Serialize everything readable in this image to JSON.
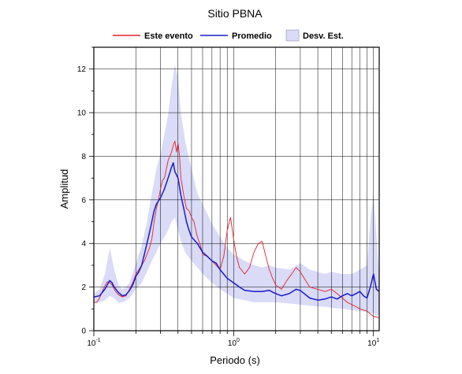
{
  "chart_data": {
    "type": "line",
    "title": "Sitio PBNA",
    "xlabel": "Periodo (s)",
    "ylabel": "Amplitud",
    "x_scale": "log",
    "xlim": [
      0.1,
      11
    ],
    "ylim": [
      0,
      13
    ],
    "grid": true,
    "legend_position": "top-center",
    "x_ticks": [
      {
        "value": 0.1,
        "base": "10",
        "exp": "-1"
      },
      {
        "value": 1,
        "base": "10",
        "exp": "0"
      },
      {
        "value": 10,
        "base": "10",
        "exp": "1"
      }
    ],
    "y_ticks": [
      0,
      2,
      4,
      6,
      8,
      10,
      12
    ],
    "legend": [
      {
        "label": "Este evento",
        "kind": "line",
        "color": "#e8202a"
      },
      {
        "label": "Promedio",
        "kind": "line",
        "color": "#1a1acc"
      },
      {
        "label": "Desv. Est.",
        "kind": "band",
        "color": "#d9dbf7"
      }
    ],
    "series": [
      {
        "name": "Este evento",
        "color": "#e8202a",
        "points": [
          [
            0.1,
            1.3
          ],
          [
            0.105,
            1.3
          ],
          [
            0.11,
            1.5
          ],
          [
            0.115,
            1.8
          ],
          [
            0.12,
            2.05
          ],
          [
            0.125,
            2.25
          ],
          [
            0.13,
            2.2
          ],
          [
            0.135,
            2.1
          ],
          [
            0.14,
            1.9
          ],
          [
            0.145,
            1.75
          ],
          [
            0.15,
            1.65
          ],
          [
            0.16,
            1.55
          ],
          [
            0.17,
            1.6
          ],
          [
            0.18,
            1.9
          ],
          [
            0.19,
            2.2
          ],
          [
            0.2,
            2.6
          ],
          [
            0.21,
            2.8
          ],
          [
            0.22,
            3.0
          ],
          [
            0.23,
            3.2
          ],
          [
            0.24,
            3.5
          ],
          [
            0.25,
            3.8
          ],
          [
            0.26,
            4.2
          ],
          [
            0.27,
            5.0
          ],
          [
            0.28,
            5.6
          ],
          [
            0.29,
            6.0
          ],
          [
            0.3,
            6.5
          ],
          [
            0.31,
            6.9
          ],
          [
            0.32,
            7.0
          ],
          [
            0.33,
            7.4
          ],
          [
            0.34,
            7.8
          ],
          [
            0.35,
            8.0
          ],
          [
            0.36,
            8.2
          ],
          [
            0.37,
            8.5
          ],
          [
            0.38,
            8.7
          ],
          [
            0.39,
            8.2
          ],
          [
            0.4,
            8.6
          ],
          [
            0.41,
            8.0
          ],
          [
            0.42,
            7.0
          ],
          [
            0.44,
            6.2
          ],
          [
            0.46,
            5.6
          ],
          [
            0.48,
            5.5
          ],
          [
            0.5,
            5.2
          ],
          [
            0.52,
            5.0
          ],
          [
            0.55,
            4.3
          ],
          [
            0.58,
            3.9
          ],
          [
            0.6,
            3.5
          ],
          [
            0.65,
            3.4
          ],
          [
            0.7,
            3.2
          ],
          [
            0.75,
            3.0
          ],
          [
            0.8,
            2.8
          ],
          [
            0.85,
            3.4
          ],
          [
            0.9,
            4.6
          ],
          [
            0.95,
            5.2
          ],
          [
            1.0,
            4.2
          ],
          [
            1.05,
            3.4
          ],
          [
            1.1,
            2.9
          ],
          [
            1.2,
            2.6
          ],
          [
            1.3,
            2.9
          ],
          [
            1.4,
            3.6
          ],
          [
            1.5,
            4.0
          ],
          [
            1.6,
            4.1
          ],
          [
            1.7,
            3.4
          ],
          [
            1.8,
            2.8
          ],
          [
            1.9,
            2.4
          ],
          [
            2.0,
            2.1
          ],
          [
            2.2,
            1.9
          ],
          [
            2.4,
            2.3
          ],
          [
            2.6,
            2.6
          ],
          [
            2.8,
            2.9
          ],
          [
            3.0,
            2.7
          ],
          [
            3.2,
            2.4
          ],
          [
            3.5,
            2.0
          ],
          [
            4.0,
            1.9
          ],
          [
            4.5,
            1.8
          ],
          [
            5.0,
            1.9
          ],
          [
            5.5,
            1.7
          ],
          [
            6.0,
            1.5
          ],
          [
            6.5,
            1.3
          ],
          [
            7.0,
            1.2
          ],
          [
            7.5,
            1.1
          ],
          [
            8.0,
            1.0
          ],
          [
            9.0,
            0.9
          ],
          [
            10.0,
            0.65
          ],
          [
            11.0,
            0.6
          ]
        ]
      },
      {
        "name": "Promedio",
        "color": "#1a1acc",
        "points": [
          [
            0.1,
            1.55
          ],
          [
            0.11,
            1.6
          ],
          [
            0.12,
            1.9
          ],
          [
            0.13,
            2.3
          ],
          [
            0.135,
            2.2
          ],
          [
            0.14,
            2.0
          ],
          [
            0.15,
            1.75
          ],
          [
            0.16,
            1.6
          ],
          [
            0.17,
            1.65
          ],
          [
            0.18,
            1.85
          ],
          [
            0.19,
            2.1
          ],
          [
            0.2,
            2.5
          ],
          [
            0.21,
            2.7
          ],
          [
            0.22,
            3.0
          ],
          [
            0.23,
            3.5
          ],
          [
            0.24,
            4.0
          ],
          [
            0.25,
            4.5
          ],
          [
            0.26,
            5.0
          ],
          [
            0.27,
            5.5
          ],
          [
            0.28,
            5.8
          ],
          [
            0.3,
            6.1
          ],
          [
            0.32,
            6.5
          ],
          [
            0.34,
            7.0
          ],
          [
            0.36,
            7.5
          ],
          [
            0.37,
            7.7
          ],
          [
            0.38,
            7.3
          ],
          [
            0.4,
            7.0
          ],
          [
            0.42,
            6.2
          ],
          [
            0.44,
            5.6
          ],
          [
            0.46,
            5.0
          ],
          [
            0.48,
            4.6
          ],
          [
            0.5,
            4.3
          ],
          [
            0.55,
            4.0
          ],
          [
            0.6,
            3.6
          ],
          [
            0.65,
            3.4
          ],
          [
            0.7,
            3.2
          ],
          [
            0.75,
            3.1
          ],
          [
            0.8,
            2.8
          ],
          [
            0.9,
            2.4
          ],
          [
            1.0,
            2.2
          ],
          [
            1.1,
            2.0
          ],
          [
            1.2,
            1.85
          ],
          [
            1.4,
            1.8
          ],
          [
            1.6,
            1.8
          ],
          [
            1.8,
            1.85
          ],
          [
            2.0,
            1.7
          ],
          [
            2.2,
            1.6
          ],
          [
            2.5,
            1.7
          ],
          [
            2.8,
            1.9
          ],
          [
            3.0,
            1.85
          ],
          [
            3.5,
            1.5
          ],
          [
            4.0,
            1.4
          ],
          [
            4.5,
            1.45
          ],
          [
            5.0,
            1.55
          ],
          [
            5.5,
            1.45
          ],
          [
            6.0,
            1.6
          ],
          [
            6.5,
            1.7
          ],
          [
            7.0,
            1.6
          ],
          [
            7.5,
            1.7
          ],
          [
            8.0,
            1.8
          ],
          [
            8.5,
            1.6
          ],
          [
            9.0,
            1.5
          ],
          [
            9.5,
            2.0
          ],
          [
            10.0,
            2.6
          ],
          [
            10.5,
            1.9
          ],
          [
            11.0,
            1.8
          ]
        ]
      }
    ],
    "band": {
      "name": "Desv. Est.",
      "color": "#d9dbf7",
      "x": [
        0.1,
        0.11,
        0.12,
        0.125,
        0.13,
        0.14,
        0.15,
        0.16,
        0.17,
        0.18,
        0.2,
        0.22,
        0.24,
        0.26,
        0.28,
        0.3,
        0.32,
        0.34,
        0.36,
        0.38,
        0.4,
        0.42,
        0.45,
        0.5,
        0.55,
        0.6,
        0.7,
        0.8,
        0.9,
        1.0,
        1.2,
        1.4,
        1.6,
        1.8,
        2.0,
        2.5,
        3.0,
        3.5,
        4.0,
        4.5,
        5.0,
        6.0,
        7.0,
        8.0,
        9.0,
        9.5,
        10.0,
        10.5,
        11.0
      ],
      "upper": [
        1.7,
        1.9,
        2.6,
        3.2,
        3.8,
        2.8,
        2.1,
        1.9,
        2.0,
        2.2,
        3.1,
        3.9,
        5.0,
        6.3,
        7.4,
        8.1,
        9.0,
        9.9,
        11.2,
        12.2,
        11.6,
        10.0,
        8.7,
        7.4,
        6.3,
        5.8,
        4.9,
        4.3,
        3.8,
        3.5,
        3.2,
        3.0,
        2.9,
        3.0,
        2.9,
        2.8,
        3.1,
        2.8,
        2.7,
        2.6,
        2.7,
        2.6,
        2.6,
        2.8,
        3.0,
        5.0,
        6.3,
        4.4,
        2.5
      ],
      "lower": [
        1.3,
        1.3,
        1.4,
        1.5,
        1.6,
        1.5,
        1.3,
        1.3,
        1.4,
        1.5,
        1.9,
        2.2,
        2.7,
        3.2,
        3.6,
        4.0,
        4.3,
        4.6,
        5.0,
        5.2,
        4.6,
        4.1,
        3.6,
        3.2,
        2.9,
        2.6,
        2.2,
        1.9,
        1.7,
        1.5,
        1.4,
        1.3,
        1.3,
        1.3,
        1.3,
        1.25,
        1.2,
        1.15,
        1.1,
        1.1,
        1.05,
        1.0,
        0.95,
        0.9,
        0.85,
        0.8,
        0.8,
        0.7,
        0.7
      ]
    }
  }
}
